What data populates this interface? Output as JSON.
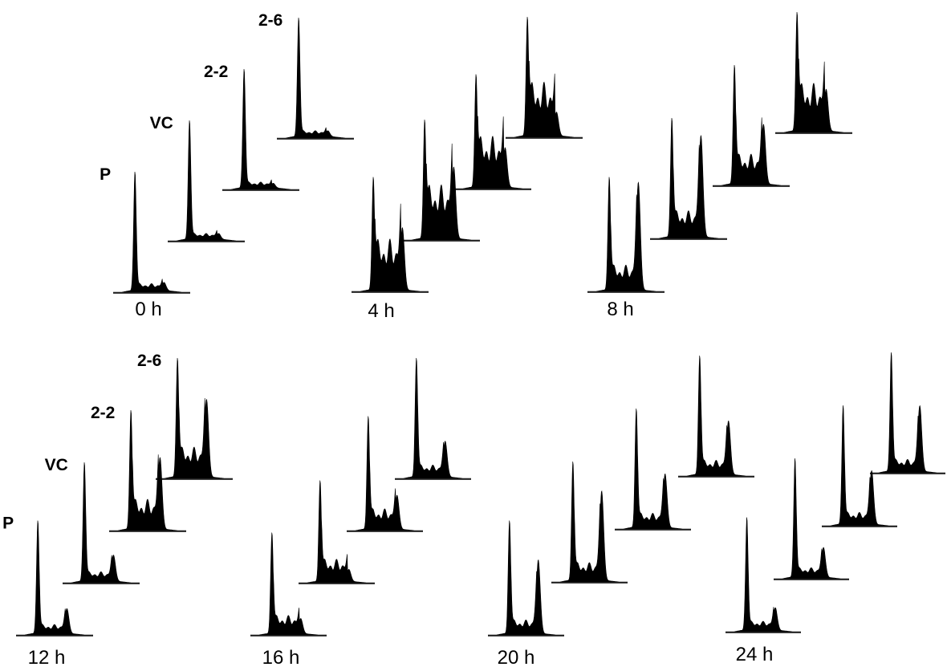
{
  "chart_data": {
    "type": "area",
    "x_scale": "relative DNA content (G1 peak = 1, G2/M peak = 2)",
    "samples": [
      "P",
      "VC",
      "2-2",
      "2-6"
    ],
    "timepoints": [
      {
        "label": "0 h",
        "show_sample_labels": true,
        "histograms": [
          {
            "sample": "P",
            "peak_height": 1.0,
            "g1": 1,
            "g2": 0.07,
            "s": 0.06
          },
          {
            "sample": "VC",
            "peak_height": 1.0,
            "g1": 1,
            "g2": 0.05,
            "s": 0.05
          },
          {
            "sample": "2-2",
            "peak_height": 1.0,
            "g1": 1,
            "g2": 0.04,
            "s": 0.05
          },
          {
            "sample": "2-6",
            "peak_height": 1.0,
            "g1": 1,
            "g2": 0.05,
            "s": 0.05
          }
        ]
      },
      {
        "label": "4 h",
        "show_sample_labels": false,
        "histograms": [
          {
            "sample": "P",
            "peak_height": 0.95,
            "g1": 1,
            "g2": 0.55,
            "s": 0.45
          },
          {
            "sample": "VC",
            "peak_height": 1.0,
            "g1": 1,
            "g2": 0.6,
            "s": 0.45
          },
          {
            "sample": "2-2",
            "peak_height": 0.95,
            "g1": 1,
            "g2": 0.35,
            "s": 0.45
          },
          {
            "sample": "2-6",
            "peak_height": 1.0,
            "g1": 1,
            "g2": 0.2,
            "s": 0.45
          }
        ]
      },
      {
        "label": "8 h",
        "show_sample_labels": false,
        "histograms": [
          {
            "sample": "P",
            "peak_height": 0.95,
            "g1": 1,
            "g2": 0.95,
            "s": 0.22
          },
          {
            "sample": "VC",
            "peak_height": 1.0,
            "g1": 1,
            "g2": 0.85,
            "s": 0.22
          },
          {
            "sample": "2-2",
            "peak_height": 1.0,
            "g1": 1,
            "g2": 0.5,
            "s": 0.25
          },
          {
            "sample": "2-6",
            "peak_height": 1.0,
            "g1": 1,
            "g2": 0.35,
            "s": 0.4
          }
        ]
      },
      {
        "label": "12 h",
        "show_sample_labels": true,
        "histograms": [
          {
            "sample": "P",
            "peak_height": 0.95,
            "g1": 1,
            "g2": 0.22,
            "s": 0.08
          },
          {
            "sample": "VC",
            "peak_height": 1.0,
            "g1": 1,
            "g2": 0.22,
            "s": 0.08
          },
          {
            "sample": "2-2",
            "peak_height": 1.0,
            "g1": 1,
            "g2": 0.6,
            "s": 0.25
          },
          {
            "sample": "2-6",
            "peak_height": 1.0,
            "g1": 1,
            "g2": 0.65,
            "s": 0.25
          }
        ]
      },
      {
        "label": "16 h",
        "show_sample_labels": false,
        "histograms": [
          {
            "sample": "P",
            "peak_height": 0.85,
            "g1": 1,
            "g2": 0.15,
            "s": 0.18
          },
          {
            "sample": "VC",
            "peak_height": 0.85,
            "g1": 1,
            "g2": 0.12,
            "s": 0.22
          },
          {
            "sample": "2-2",
            "peak_height": 0.95,
            "g1": 1,
            "g2": 0.3,
            "s": 0.18
          },
          {
            "sample": "2-6",
            "peak_height": 1.0,
            "g1": 1,
            "g2": 0.3,
            "s": 0.1
          }
        ]
      },
      {
        "label": "20 h",
        "show_sample_labels": false,
        "histograms": [
          {
            "sample": "P",
            "peak_height": 0.95,
            "g1": 1,
            "g2": 0.65,
            "s": 0.12
          },
          {
            "sample": "VC",
            "peak_height": 1.0,
            "g1": 1,
            "g2": 0.75,
            "s": 0.15
          },
          {
            "sample": "2-2",
            "peak_height": 1.0,
            "g1": 1,
            "g2": 0.45,
            "s": 0.12
          },
          {
            "sample": "2-6",
            "peak_height": 1.0,
            "g1": 1,
            "g2": 0.45,
            "s": 0.12
          }
        ]
      },
      {
        "label": "24 h",
        "show_sample_labels": false,
        "histograms": [
          {
            "sample": "P",
            "peak_height": 0.95,
            "g1": 1,
            "g2": 0.2,
            "s": 0.08
          },
          {
            "sample": "VC",
            "peak_height": 1.0,
            "g1": 1,
            "g2": 0.25,
            "s": 0.08
          },
          {
            "sample": "2-2",
            "peak_height": 1.0,
            "g1": 1,
            "g2": 0.45,
            "s": 0.1
          },
          {
            "sample": "2-6",
            "peak_height": 1.0,
            "g1": 1,
            "g2": 0.55,
            "s": 0.1
          }
        ]
      }
    ],
    "fill_color": "#000000",
    "grid": false,
    "legend": "none"
  }
}
